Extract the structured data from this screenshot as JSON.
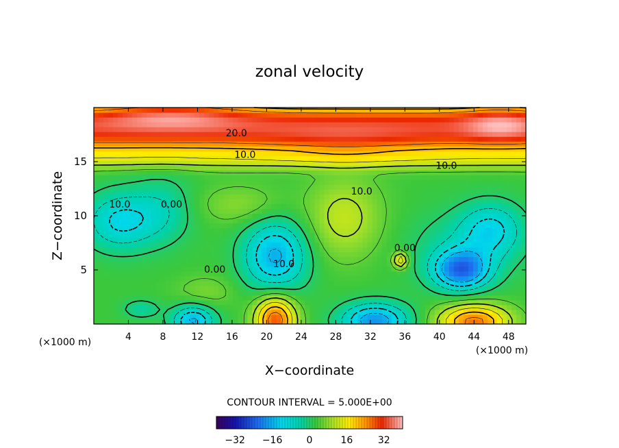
{
  "chart_data": {
    "type": "heatmap",
    "title": "zonal velocity",
    "xlabel": "X−coordinate",
    "ylabel": "Z−coordinate",
    "x_units_left": "(×1000 m)",
    "x_units_right": "(×1000 m)",
    "x_ticks": [
      "4",
      "8",
      "12",
      "16",
      "20",
      "24",
      "28",
      "32",
      "36",
      "40",
      "44",
      "48"
    ],
    "y_ticks": [
      "5",
      "10",
      "15"
    ],
    "xlim": [
      0,
      50
    ],
    "ylim": [
      0,
      20
    ],
    "contour_interval_text": "CONTOUR INTERVAL = 5.000E+00",
    "colorbar": {
      "ticks": [
        "−32",
        "−16",
        "0",
        "16",
        "32"
      ],
      "tick_values": [
        -32,
        -16,
        0,
        16,
        32
      ],
      "range": [
        -40,
        40
      ]
    },
    "contour_labels": [
      {
        "text": "20.0",
        "x": 16.5,
        "y": 17.6
      },
      {
        "text": "10.0",
        "x": 17.5,
        "y": 15.6
      },
      {
        "text": "10.0",
        "x": 40.8,
        "y": 14.6
      },
      {
        "text": "10.0",
        "x": 31,
        "y": 12.2
      },
      {
        "text": "10.0",
        "x": 3,
        "y": 11
      },
      {
        "text": "0.00",
        "x": 9,
        "y": 11
      },
      {
        "text": "0.00",
        "x": 14,
        "y": 5
      },
      {
        "text": "10.0",
        "x": 22,
        "y": 5.5
      },
      {
        "text": "0.00",
        "x": 36,
        "y": 7
      }
    ],
    "features": [
      {
        "kind": "base",
        "value": 3
      },
      {
        "kind": "band",
        "y": 18.8,
        "width": 1.6,
        "value": 26
      },
      {
        "kind": "band",
        "y": 17.0,
        "width": 1.3,
        "value": 17
      },
      {
        "kind": "band",
        "y": 15.2,
        "width": 0.9,
        "value": 9
      },
      {
        "kind": "blob",
        "x": 9,
        "y": 19.5,
        "rx": 8,
        "ry": 1.3,
        "value": 10
      },
      {
        "kind": "blob",
        "x": 47,
        "y": 18.5,
        "rx": 4,
        "ry": 1.5,
        "value": 8
      },
      {
        "kind": "blob",
        "x": 29,
        "y": 16.6,
        "rx": 9,
        "ry": 1.6,
        "value": 4
      },
      {
        "kind": "blob",
        "x": 3,
        "y": 9.5,
        "rx": 4,
        "ry": 2.6,
        "value": -14
      },
      {
        "kind": "blob",
        "x": 8,
        "y": 10.5,
        "rx": 3.5,
        "ry": 3,
        "value": -7
      },
      {
        "kind": "blob",
        "x": 21,
        "y": 6.3,
        "rx": 3.6,
        "ry": 3.2,
        "value": -19
      },
      {
        "kind": "blob",
        "x": 42.5,
        "y": 5,
        "rx": 3.2,
        "ry": 1.8,
        "value": -24
      },
      {
        "kind": "blob",
        "x": 46,
        "y": 8.8,
        "rx": 3.5,
        "ry": 2.4,
        "value": -12
      },
      {
        "kind": "blob",
        "x": 43,
        "y": 7.2,
        "rx": 6.5,
        "ry": 3.2,
        "value": -6
      },
      {
        "kind": "blob",
        "x": 11.5,
        "y": 0.3,
        "rx": 2.4,
        "ry": 1.4,
        "value": -19
      },
      {
        "kind": "blob",
        "x": 32.5,
        "y": 0.3,
        "rx": 3.8,
        "ry": 1.6,
        "value": -22
      },
      {
        "kind": "blob",
        "x": 21,
        "y": 0.4,
        "rx": 2.3,
        "ry": 2.2,
        "value": 26
      },
      {
        "kind": "blob",
        "x": 44,
        "y": 0.2,
        "rx": 4,
        "ry": 1.6,
        "value": 24
      },
      {
        "kind": "blob",
        "x": 29,
        "y": 9.8,
        "rx": 4.2,
        "ry": 3.6,
        "value": 9
      },
      {
        "kind": "blob",
        "x": 17,
        "y": 11,
        "rx": 5,
        "ry": 1.8,
        "value": 5
      },
      {
        "kind": "blob",
        "x": 35.5,
        "y": 5.9,
        "rx": 0.8,
        "ry": 0.7,
        "value": 17
      },
      {
        "kind": "blob",
        "x": 5.5,
        "y": 1.4,
        "rx": 2,
        "ry": 0.8,
        "value": -7
      },
      {
        "kind": "blob",
        "x": 13,
        "y": 3,
        "rx": 3.5,
        "ry": 1.5,
        "value": 4
      }
    ]
  }
}
